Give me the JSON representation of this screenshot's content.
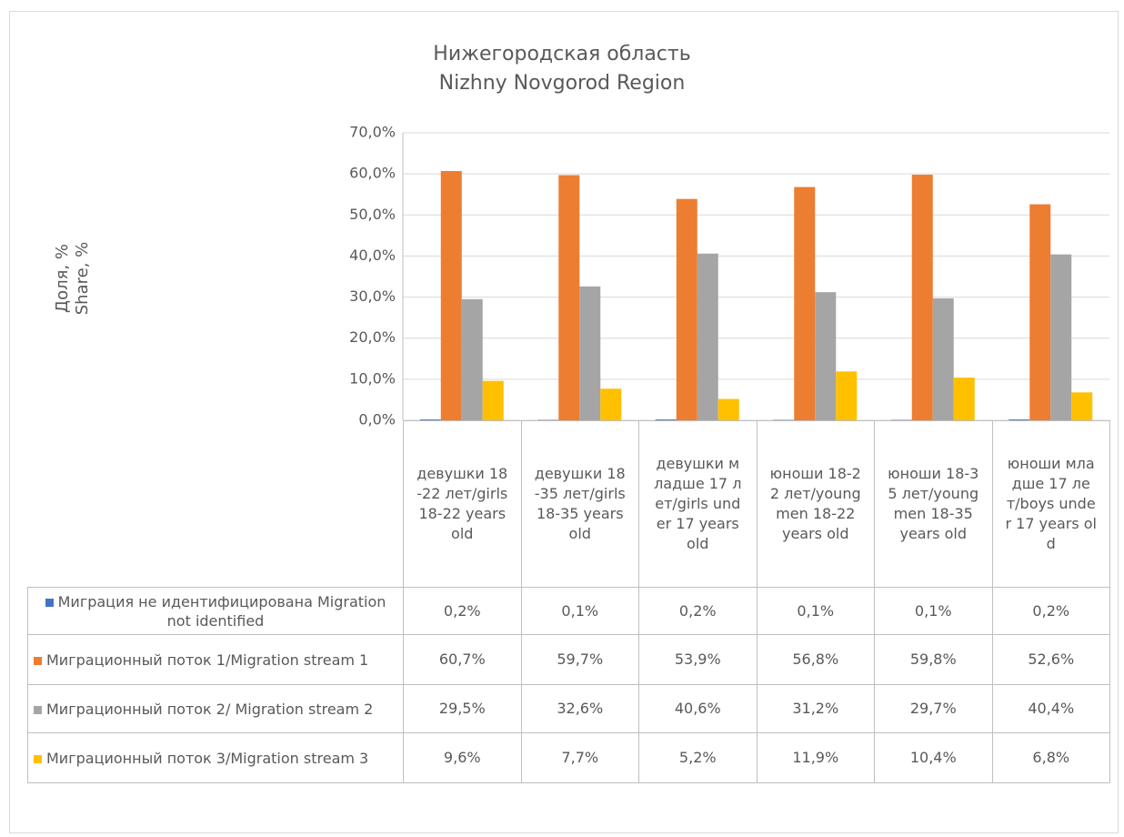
{
  "chart_data": {
    "type": "bar",
    "title": [
      "Нижегородская область",
      "Nizhny Novgorod Region"
    ],
    "y_axis_label": [
      "Доля, %",
      "Share, %"
    ],
    "categories": [
      "девушки 18-22 лет/girls 18-22 years old",
      "девушки 18-35 лет/girls 18-35 years old",
      "девушки младше 17 лет/girls under 17 years old",
      "юноши 18-22 лет/young men 18-22 years old",
      "юноши 18-35 лет/young men 18-35 years old",
      "юноши младше 17 лет/boys under 17 years old"
    ],
    "series": [
      {
        "name": "Миграция не идентифицирована Migration not identified",
        "color": "#4472c4",
        "values": [
          0.2,
          0.1,
          0.2,
          0.1,
          0.1,
          0.2
        ],
        "value_labels": [
          "0,2%",
          "0,1%",
          "0,2%",
          "0,1%",
          "0,1%",
          "0,2%"
        ]
      },
      {
        "name": "Миграционный поток 1/Migration stream 1",
        "color": "#ed7d31",
        "values": [
          60.7,
          59.7,
          53.9,
          56.8,
          59.8,
          52.6
        ],
        "value_labels": [
          "60,7%",
          "59,7%",
          "53,9%",
          "56,8%",
          "59,8%",
          "52,6%"
        ]
      },
      {
        "name": "Миграционный поток 2/ Migration stream 2",
        "color": "#a5a5a5",
        "values": [
          29.5,
          32.6,
          40.6,
          31.2,
          29.7,
          40.4
        ],
        "value_labels": [
          "29,5%",
          "32,6%",
          "40,6%",
          "31,2%",
          "29,7%",
          "40,4%"
        ]
      },
      {
        "name": "Миграционный поток 3/Migration stream 3",
        "color": "#ffc000",
        "values": [
          9.6,
          7.7,
          5.2,
          11.9,
          10.4,
          6.8
        ],
        "value_labels": [
          "9,6%",
          "7,7%",
          "5,2%",
          "11,9%",
          "10,4%",
          "6,8%"
        ]
      }
    ],
    "ylim": [
      0,
      70
    ],
    "yticks": [
      {
        "value": 0,
        "label": "0,0%"
      },
      {
        "value": 10,
        "label": "10,0%"
      },
      {
        "value": 20,
        "label": "20,0%"
      },
      {
        "value": 30,
        "label": "30,0%"
      },
      {
        "value": 40,
        "label": "40,0%"
      },
      {
        "value": 50,
        "label": "50,0%"
      },
      {
        "value": 60,
        "label": "60,0%"
      },
      {
        "value": 70,
        "label": "70,0%"
      }
    ],
    "grid": true
  }
}
